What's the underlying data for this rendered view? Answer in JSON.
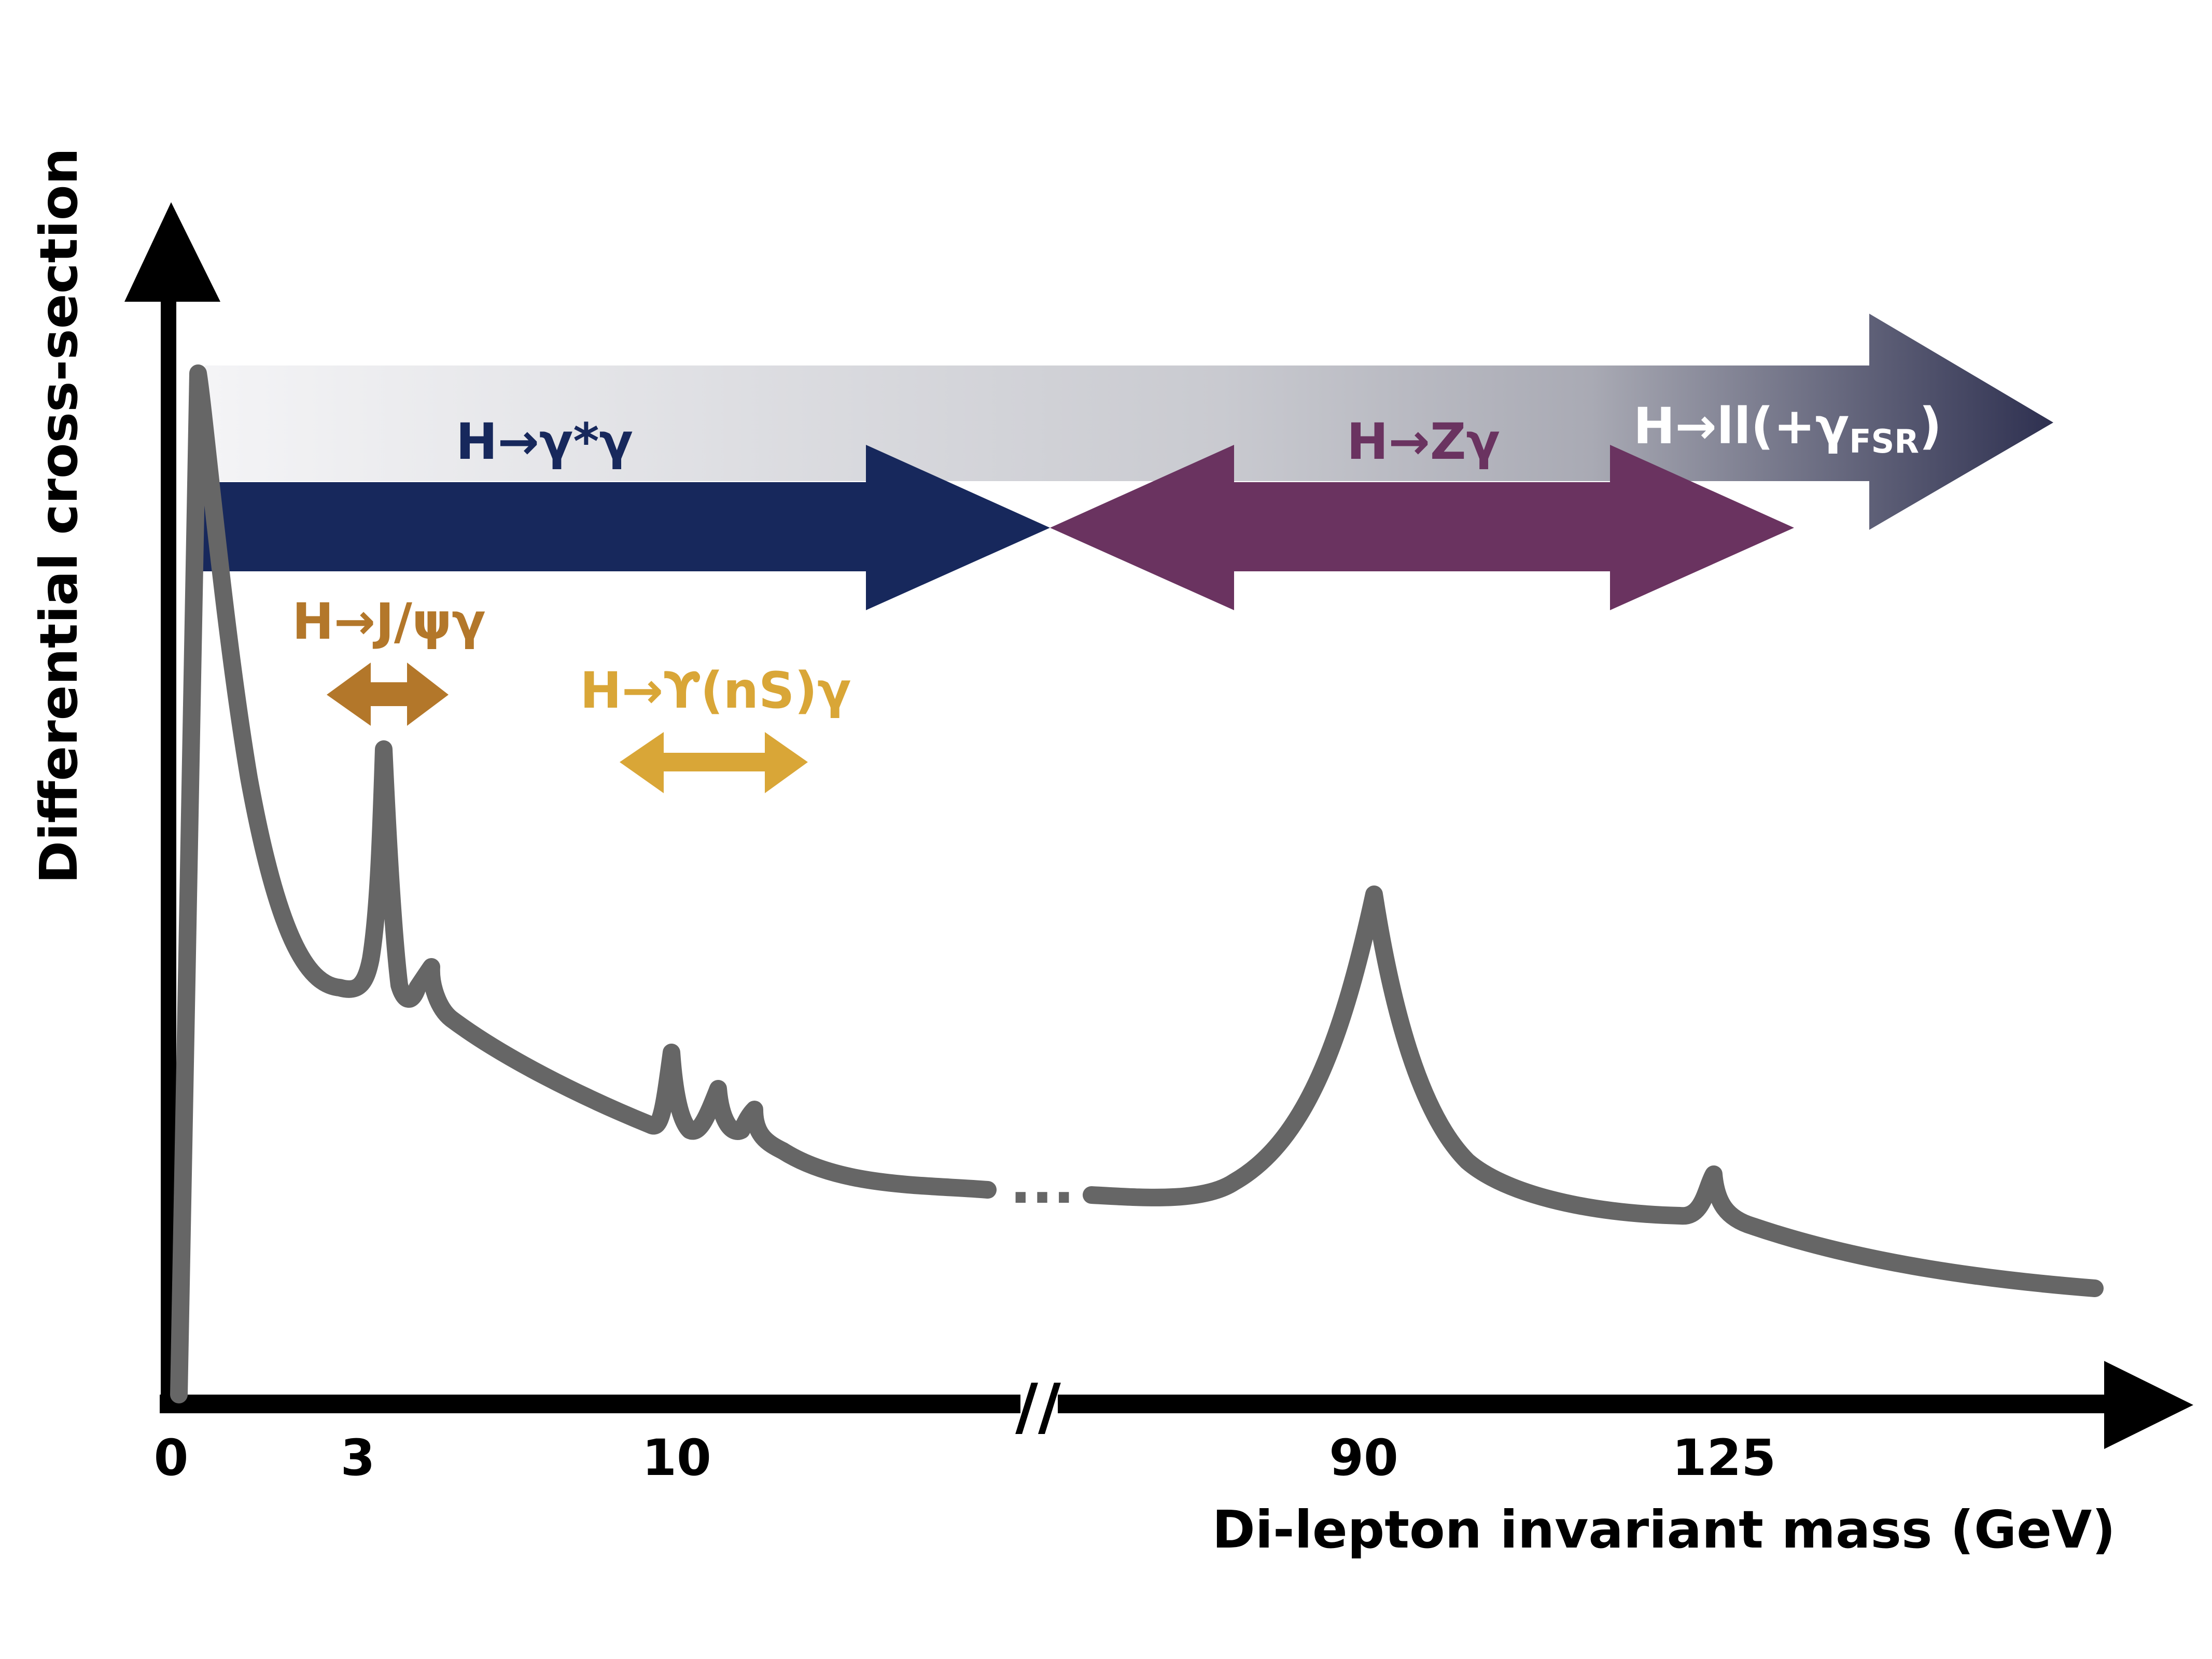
{
  "axes": {
    "y_label": "Differential cross-section",
    "x_label": "Di-lepton invariant mass (GeV)",
    "x_ticks": [
      "0",
      "3",
      "10",
      "90",
      "125"
    ],
    "axis_break": "//",
    "curve_break": "..."
  },
  "processes": {
    "ll_fsr": {
      "base": "H→ll(+γ",
      "sub": "FSR",
      "close": ")"
    },
    "gamma_star": "H→γ*γ",
    "z_gamma": "H→Zγ",
    "jpsi": "H→J/ψγ",
    "upsilon": "H→ϒ(nS)γ"
  },
  "colors": {
    "axis": "#000000",
    "curve": "#666666",
    "gamma_star_arrow": "#17285c",
    "z_gamma_arrow": "#6a3360",
    "jpsi_arrow": "#b3772a",
    "upsilon_arrow": "#d9a637",
    "ll_gradient_start": "#f2f2f4",
    "ll_gradient_end": "#2e3050",
    "ll_label": "#ffffff"
  }
}
